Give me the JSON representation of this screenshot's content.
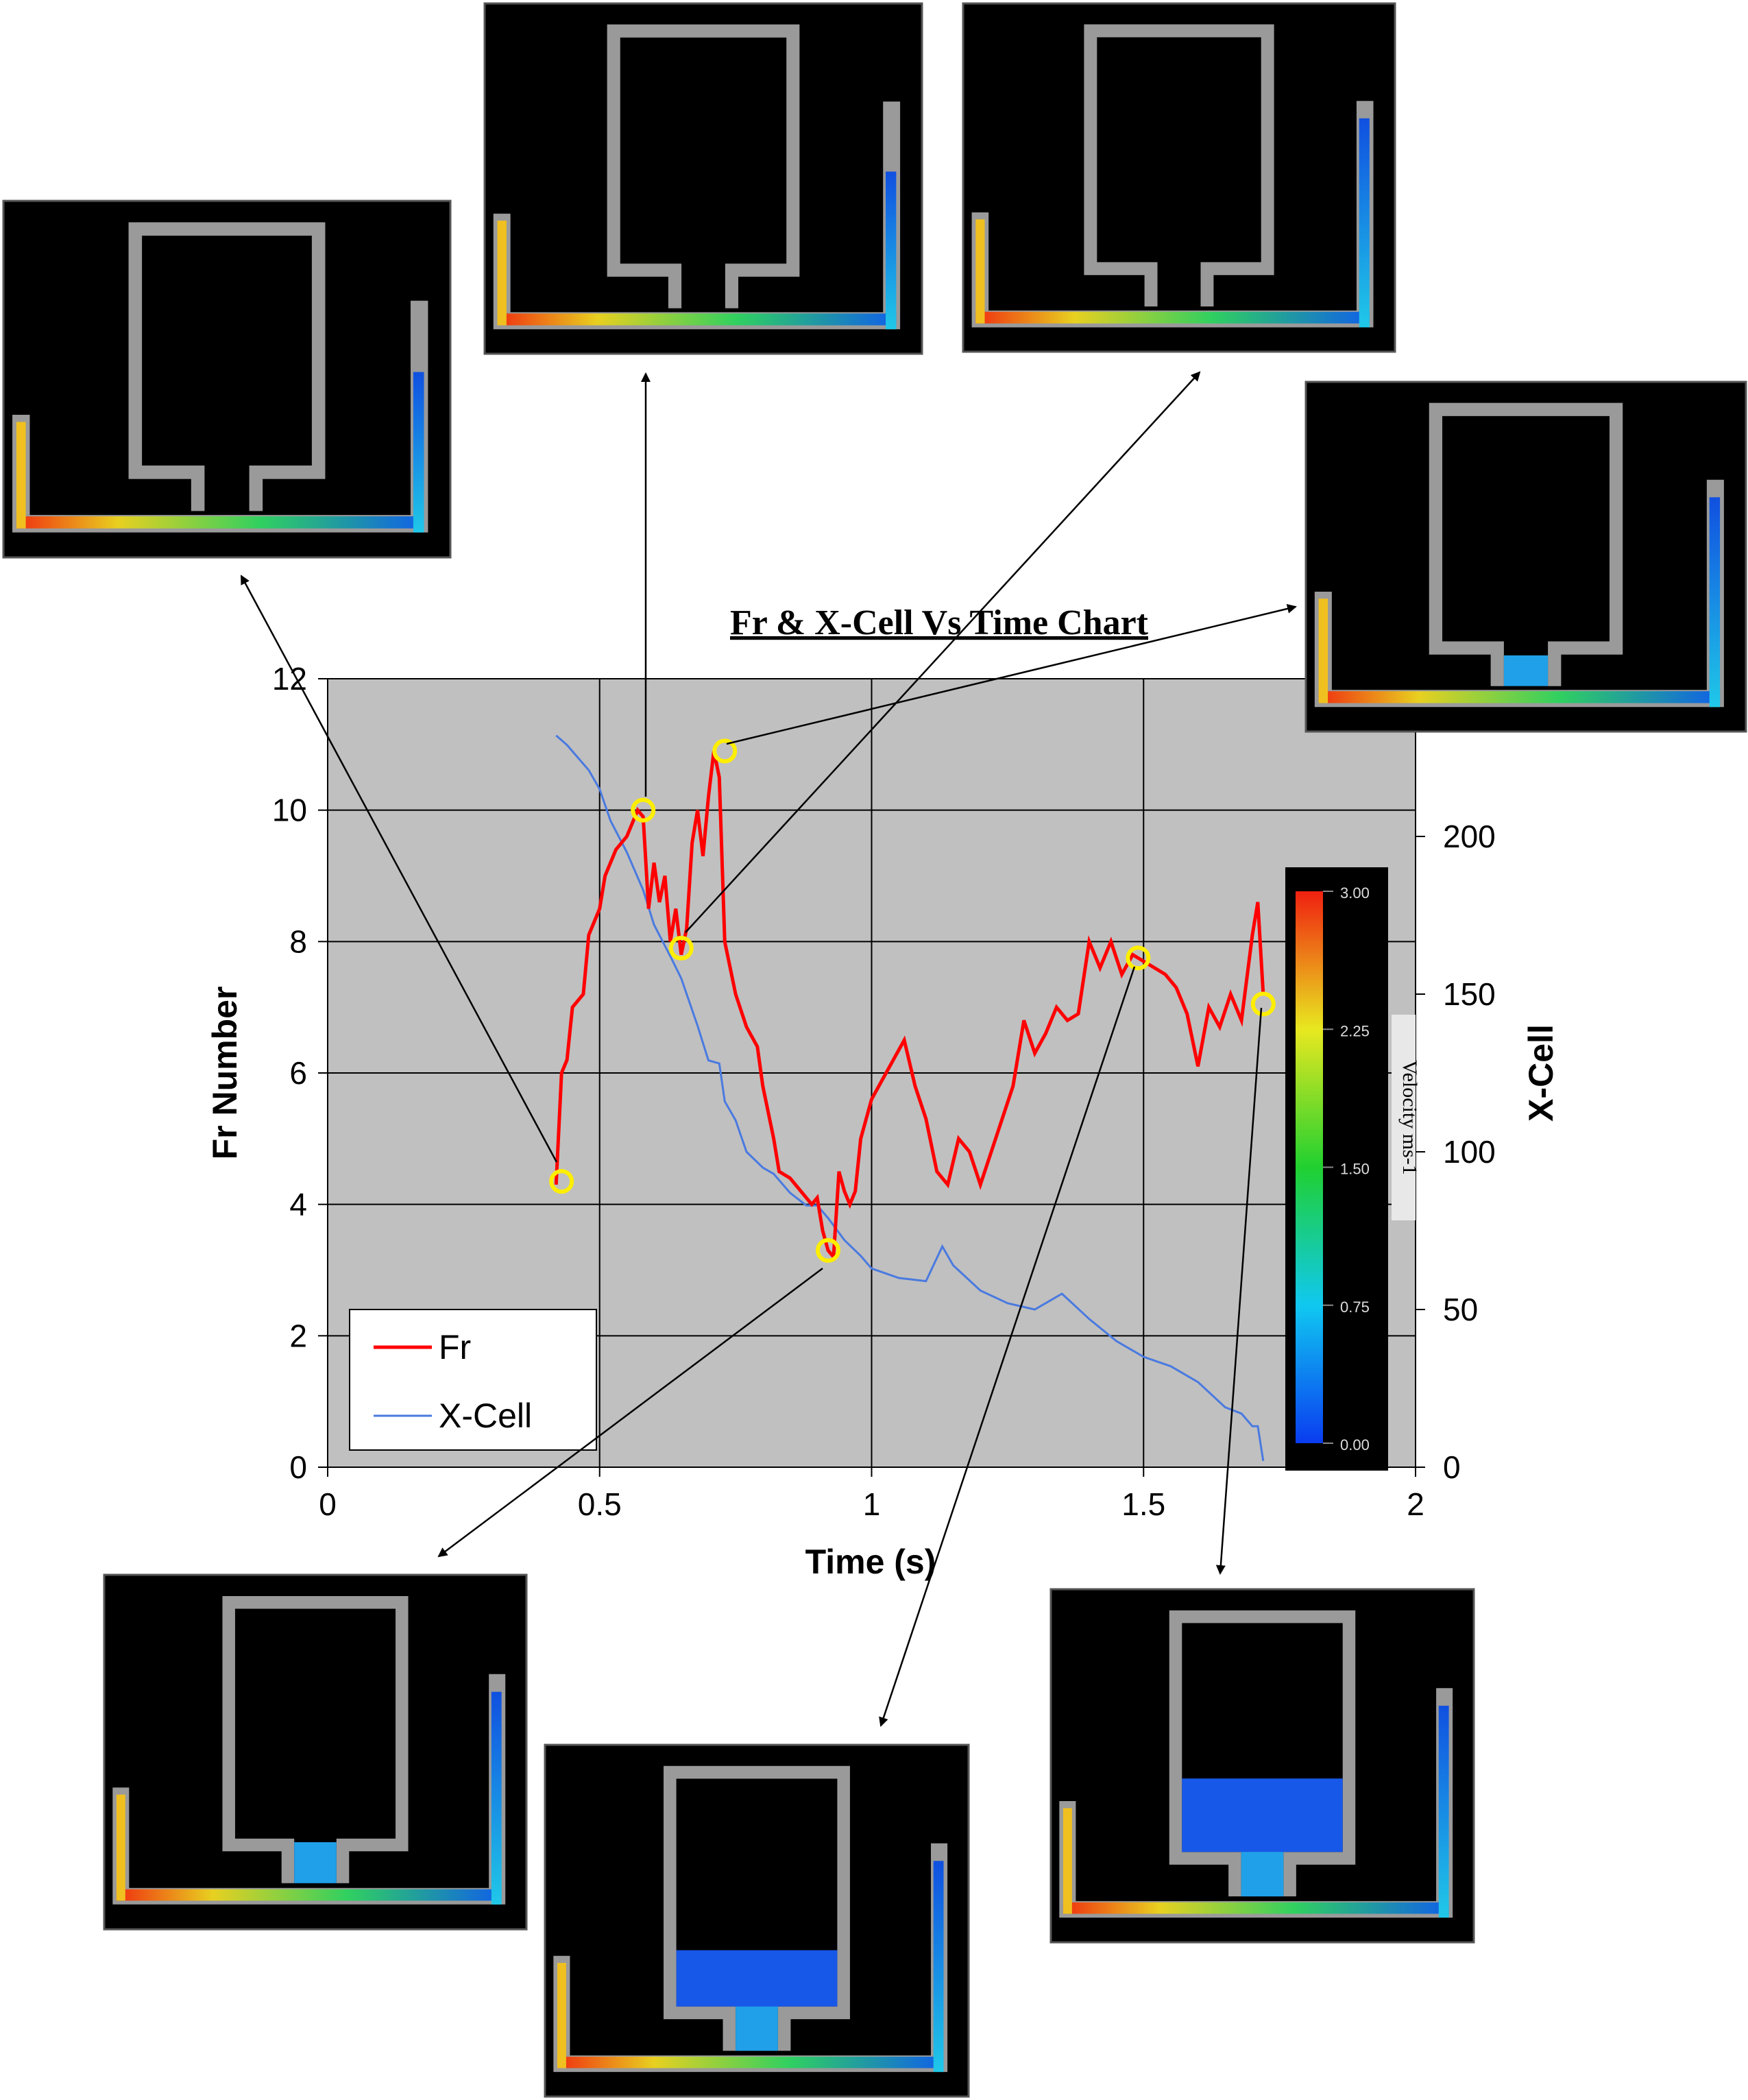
{
  "chart_data": {
    "type": "line",
    "title": "Fr & X-Cell Vs Time Chart",
    "xlabel": "Time (s)",
    "ylabel": "Fr Number",
    "y2label": "X-Cell",
    "xlim": [
      0,
      2
    ],
    "ylim": [
      0,
      12
    ],
    "y2lim": [
      0,
      250
    ],
    "xticks": [
      "0",
      "0.5",
      "1",
      "1.5",
      "2"
    ],
    "yticks": [
      "0",
      "2",
      "4",
      "6",
      "8",
      "10",
      "12"
    ],
    "y2ticks": [
      "0",
      "50",
      "100",
      "150",
      "200"
    ],
    "grid": true,
    "legend": "lower-left",
    "series": [
      {
        "name": "Fr",
        "color": "#ff0000",
        "axis": "left",
        "x": [
          0.42,
          0.43,
          0.44,
          0.45,
          0.47,
          0.48,
          0.5,
          0.51,
          0.53,
          0.55,
          0.57,
          0.58,
          0.59,
          0.6,
          0.61,
          0.62,
          0.63,
          0.64,
          0.65,
          0.66,
          0.67,
          0.68,
          0.69,
          0.7,
          0.71,
          0.72,
          0.73,
          0.74,
          0.75,
          0.77,
          0.79,
          0.8,
          0.82,
          0.83,
          0.85,
          0.87,
          0.89,
          0.9,
          0.91,
          0.92,
          0.93,
          0.94,
          0.95,
          0.96,
          0.97,
          0.98,
          1.0,
          1.02,
          1.04,
          1.06,
          1.08,
          1.1,
          1.12,
          1.14,
          1.16,
          1.18,
          1.2,
          1.22,
          1.24,
          1.26,
          1.28,
          1.3,
          1.32,
          1.34,
          1.36,
          1.38,
          1.4,
          1.42,
          1.44,
          1.46,
          1.48,
          1.5,
          1.52,
          1.54,
          1.56,
          1.58,
          1.6,
          1.62,
          1.64,
          1.66,
          1.68,
          1.7,
          1.71,
          1.72
        ],
        "y": [
          4.3,
          6.0,
          6.2,
          7.0,
          7.2,
          8.1,
          8.5,
          9.0,
          9.4,
          9.6,
          10.0,
          9.9,
          8.5,
          9.2,
          8.6,
          9.0,
          8.0,
          8.5,
          7.8,
          8.2,
          9.5,
          10.0,
          9.3,
          10.2,
          10.9,
          10.5,
          8.0,
          7.6,
          7.2,
          6.7,
          6.4,
          5.8,
          5.0,
          4.5,
          4.4,
          4.2,
          4.0,
          4.1,
          3.6,
          3.3,
          3.2,
          4.5,
          4.2,
          4.0,
          4.2,
          5.0,
          5.6,
          5.9,
          6.2,
          6.5,
          5.8,
          5.3,
          4.5,
          4.3,
          5.0,
          4.8,
          4.3,
          4.8,
          5.3,
          5.8,
          6.8,
          6.3,
          6.6,
          7.0,
          6.8,
          6.9,
          8.0,
          7.6,
          8.0,
          7.5,
          7.8,
          7.7,
          7.6,
          7.5,
          7.3,
          6.9,
          6.1,
          7.0,
          6.7,
          7.2,
          6.8,
          8.1,
          8.6,
          7.2
        ]
      },
      {
        "name": "X-Cell",
        "color": "#4a7ae0",
        "axis": "right",
        "x": [
          0.42,
          0.44,
          0.46,
          0.48,
          0.5,
          0.52,
          0.55,
          0.58,
          0.6,
          0.63,
          0.65,
          0.68,
          0.7,
          0.72,
          0.73,
          0.75,
          0.77,
          0.8,
          0.82,
          0.85,
          0.88,
          0.9,
          0.92,
          0.95,
          0.98,
          1.0,
          1.05,
          1.1,
          1.13,
          1.15,
          1.2,
          1.25,
          1.3,
          1.33,
          1.35,
          1.4,
          1.45,
          1.5,
          1.55,
          1.6,
          1.65,
          1.68,
          1.7,
          1.71,
          1.72
        ],
        "y": [
          232,
          229,
          225,
          221,
          215,
          205,
          195,
          183,
          172,
          162,
          155,
          140,
          129,
          128,
          116,
          110,
          100,
          95,
          93,
          87,
          83,
          83,
          79,
          72,
          67,
          63,
          60,
          59,
          70,
          64,
          56,
          52,
          50,
          53,
          55,
          47,
          40,
          35,
          32,
          27,
          19,
          17,
          13,
          13,
          2
        ]
      }
    ],
    "annotations": {
      "colorbar": {
        "label": "Velocity ms-1",
        "ticks": [
          "3.00",
          "2.25",
          "1.50",
          "0.75",
          "0.00"
        ]
      },
      "markers": [
        {
          "series": "Fr",
          "x": 0.43,
          "y": 4.35
        },
        {
          "series": "Fr",
          "x": 0.58,
          "y": 10.0
        },
        {
          "series": "Fr",
          "x": 0.65,
          "y": 7.9
        },
        {
          "series": "Fr",
          "x": 0.73,
          "y": 10.9
        },
        {
          "series": "Fr",
          "x": 0.92,
          "y": 3.3
        },
        {
          "series": "Fr",
          "x": 1.49,
          "y": 7.75
        },
        {
          "series": "Fr",
          "x": 1.72,
          "y": 7.05
        }
      ]
    }
  }
}
